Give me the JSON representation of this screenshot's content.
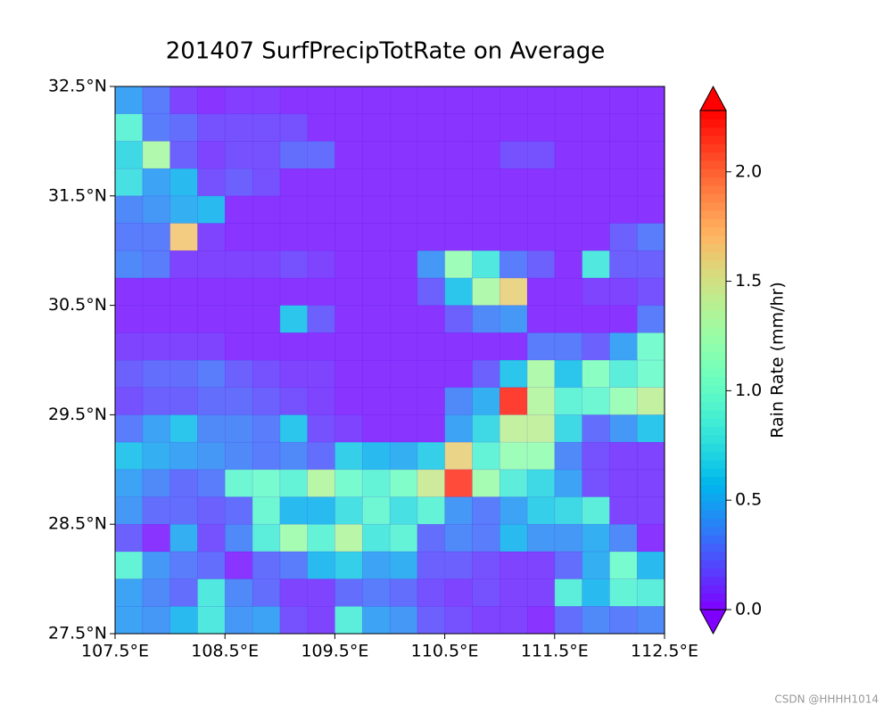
{
  "chart_data": {
    "type": "heatmap",
    "title": "201407 SurfPrecipTotRate on Average",
    "xlim": [
      107.5,
      112.5
    ],
    "ylim": [
      27.5,
      32.5
    ],
    "origin": "upper",
    "xticks": [
      {
        "value": 107.5,
        "label": "107.5°E"
      },
      {
        "value": 108.5,
        "label": "108.5°E"
      },
      {
        "value": 109.5,
        "label": "109.5°E"
      },
      {
        "value": 110.5,
        "label": "110.5°E"
      },
      {
        "value": 111.5,
        "label": "111.5°E"
      },
      {
        "value": 112.5,
        "label": "112.5°E"
      }
    ],
    "yticks": [
      {
        "value": 27.5,
        "label": "27.5°N"
      },
      {
        "value": 28.5,
        "label": "28.5°N"
      },
      {
        "value": 29.5,
        "label": "29.5°N"
      },
      {
        "value": 30.5,
        "label": "30.5°N"
      },
      {
        "value": 31.5,
        "label": "31.5°N"
      },
      {
        "value": 32.5,
        "label": "32.5°N"
      }
    ],
    "colormap": "rainbow",
    "cell_opacity": 0.85,
    "colorbar": {
      "label": "Rain Rate (mm/hr)",
      "clim": [
        0,
        2.28
      ],
      "extend": "both",
      "ticks": [
        {
          "value": 0,
          "label": "0.0"
        },
        0.5,
        {
          "value": 1,
          "label": "1.0"
        },
        1.5,
        {
          "value": 2,
          "label": "2.0"
        }
      ]
    },
    "z": [
      [
        0.45,
        0.3,
        0.1,
        0.05,
        0.08,
        0.08,
        0.05,
        0.05,
        0.05,
        0.05,
        0.05,
        0.05,
        0.05,
        0.05,
        0.05,
        0.05,
        0.05,
        0.05,
        0.05,
        0.05
      ],
      [
        0.9,
        0.3,
        0.25,
        0.15,
        0.15,
        0.15,
        0.15,
        0.05,
        0.05,
        0.05,
        0.05,
        0.05,
        0.05,
        0.05,
        0.05,
        0.05,
        0.05,
        0.05,
        0.05,
        0.05
      ],
      [
        0.7,
        1.3,
        0.2,
        0.1,
        0.15,
        0.15,
        0.25,
        0.25,
        0.05,
        0.05,
        0.05,
        0.05,
        0.05,
        0.05,
        0.15,
        0.15,
        0.05,
        0.05,
        0.05,
        0.05
      ],
      [
        0.75,
        0.45,
        0.55,
        0.15,
        0.2,
        0.15,
        0.05,
        0.05,
        0.05,
        0.05,
        0.05,
        0.05,
        0.05,
        0.05,
        0.05,
        0.05,
        0.05,
        0.05,
        0.05,
        0.05
      ],
      [
        0.35,
        0.4,
        0.5,
        0.55,
        0.05,
        0.05,
        0.05,
        0.05,
        0.05,
        0.05,
        0.05,
        0.05,
        0.05,
        0.05,
        0.05,
        0.05,
        0.05,
        0.05,
        0.05,
        0.05
      ],
      [
        0.3,
        0.3,
        1.65,
        0.1,
        0.05,
        0.05,
        0.05,
        0.05,
        0.05,
        0.05,
        0.05,
        0.05,
        0.05,
        0.05,
        0.05,
        0.05,
        0.05,
        0.05,
        0.2,
        0.3
      ],
      [
        0.35,
        0.3,
        0.1,
        0.1,
        0.1,
        0.1,
        0.15,
        0.1,
        0.05,
        0.05,
        0.05,
        0.4,
        1.2,
        0.8,
        0.3,
        0.2,
        0.05,
        0.8,
        0.2,
        0.2
      ],
      [
        0.05,
        0.05,
        0.05,
        0.05,
        0.05,
        0.05,
        0.05,
        0.05,
        0.05,
        0.05,
        0.05,
        0.2,
        0.6,
        1.3,
        1.6,
        0.05,
        0.05,
        0.1,
        0.1,
        0.15
      ],
      [
        0.05,
        0.05,
        0.05,
        0.05,
        0.05,
        0.05,
        0.6,
        0.2,
        0.05,
        0.05,
        0.05,
        0.05,
        0.2,
        0.35,
        0.4,
        0.05,
        0.05,
        0.05,
        0.05,
        0.3
      ],
      [
        0.1,
        0.1,
        0.1,
        0.1,
        0.05,
        0.05,
        0.05,
        0.05,
        0.05,
        0.05,
        0.05,
        0.05,
        0.05,
        0.05,
        0.05,
        0.3,
        0.3,
        0.2,
        0.45,
        1.0
      ],
      [
        0.2,
        0.25,
        0.25,
        0.3,
        0.2,
        0.15,
        0.1,
        0.1,
        0.05,
        0.05,
        0.05,
        0.05,
        0.05,
        0.2,
        0.6,
        1.3,
        0.6,
        1.1,
        0.85,
        1.0
      ],
      [
        0.15,
        0.2,
        0.2,
        0.25,
        0.25,
        0.2,
        0.15,
        0.1,
        0.05,
        0.05,
        0.05,
        0.05,
        0.35,
        0.5,
        2.2,
        1.35,
        0.9,
        0.95,
        1.2,
        1.4
      ],
      [
        0.3,
        0.45,
        0.6,
        0.35,
        0.35,
        0.3,
        0.6,
        0.15,
        0.1,
        0.05,
        0.05,
        0.05,
        0.45,
        0.7,
        1.4,
        1.4,
        0.7,
        0.25,
        0.4,
        0.6
      ],
      [
        0.6,
        0.5,
        0.45,
        0.4,
        0.35,
        0.3,
        0.35,
        0.25,
        0.65,
        0.55,
        0.5,
        0.65,
        1.6,
        0.9,
        1.2,
        1.2,
        0.35,
        0.15,
        0.1,
        0.1
      ],
      [
        0.45,
        0.35,
        0.25,
        0.3,
        0.95,
        1.0,
        0.9,
        1.35,
        1.0,
        0.9,
        1.05,
        1.45,
        2.15,
        1.25,
        0.85,
        0.7,
        0.45,
        0.15,
        0.1,
        0.1
      ],
      [
        0.4,
        0.25,
        0.25,
        0.2,
        0.25,
        0.95,
        0.55,
        0.55,
        0.75,
        0.95,
        0.75,
        0.9,
        0.4,
        0.3,
        0.45,
        0.65,
        0.7,
        0.85,
        0.1,
        0.1
      ],
      [
        0.2,
        0.05,
        0.5,
        0.15,
        0.35,
        0.85,
        1.25,
        0.9,
        1.35,
        0.8,
        0.9,
        0.25,
        0.35,
        0.3,
        0.55,
        0.4,
        0.4,
        0.5,
        0.35,
        0.05
      ],
      [
        0.9,
        0.4,
        0.3,
        0.25,
        0.05,
        0.25,
        0.3,
        0.55,
        0.65,
        0.45,
        0.5,
        0.2,
        0.2,
        0.15,
        0.1,
        0.1,
        0.25,
        0.5,
        1.0,
        0.55
      ],
      [
        0.45,
        0.35,
        0.25,
        0.8,
        0.35,
        0.25,
        0.1,
        0.1,
        0.25,
        0.3,
        0.25,
        0.15,
        0.1,
        0.15,
        0.1,
        0.1,
        0.85,
        0.55,
        0.9,
        0.85
      ],
      [
        0.45,
        0.4,
        0.55,
        0.8,
        0.4,
        0.45,
        0.15,
        0.1,
        0.85,
        0.45,
        0.4,
        0.2,
        0.15,
        0.1,
        0.1,
        0.05,
        0.25,
        0.35,
        0.3,
        0.35
      ]
    ]
  },
  "watermark": "CSDN @HHHH1014"
}
